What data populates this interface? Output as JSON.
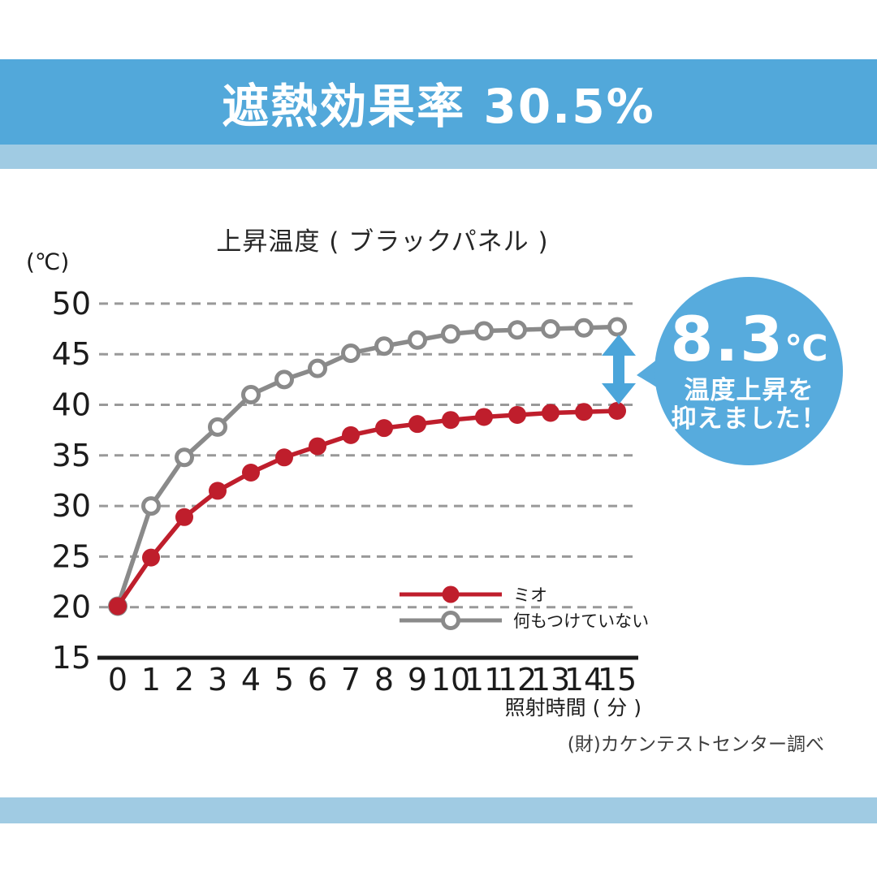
{
  "header": {
    "title": "遮熱効果率 30.5%",
    "band_color": "#52A8DA",
    "accent_band_color": "#A0CBE3"
  },
  "chart_data": {
    "type": "line",
    "title": "上昇温度 ( ブラックパネル )",
    "y_axis_unit": "(℃)",
    "xlabel": "照射時間 ( 分 )",
    "x": [
      0,
      1,
      2,
      3,
      4,
      5,
      6,
      7,
      8,
      9,
      10,
      11,
      12,
      13,
      14,
      15
    ],
    "y_ticks": [
      15,
      20,
      25,
      30,
      35,
      40,
      45,
      50
    ],
    "ylim": [
      15,
      50
    ],
    "xlim": [
      0,
      15
    ],
    "grid": "horizontal-dashed",
    "grid_color": "#999999",
    "axis_color": "#1c1c1c",
    "legend_position": "inside-lower-right",
    "series": [
      {
        "id": "mio",
        "name": "ミオ",
        "color": "#BF1E2C",
        "marker": "filled-circle",
        "values": [
          20.1,
          24.9,
          28.9,
          31.5,
          33.3,
          34.8,
          35.9,
          37.0,
          37.7,
          38.1,
          38.5,
          38.8,
          39.0,
          39.2,
          39.3,
          39.4
        ]
      },
      {
        "id": "untreated",
        "name": "何もつけていない",
        "color": "#8A8A8A",
        "marker": "open-circle",
        "values": [
          20.1,
          30.0,
          34.8,
          37.8,
          41.0,
          42.5,
          43.6,
          45.1,
          45.8,
          46.4,
          47.0,
          47.3,
          47.4,
          47.5,
          47.6,
          47.7
        ]
      }
    ],
    "annotation": {
      "difference_value": "8.3",
      "difference_unit": "℃",
      "description_line1": "温度上昇を",
      "description_line2": "抑えました！",
      "badge_color": "#57ABDD",
      "arrow_color": "#4BA5DA"
    }
  },
  "footer": {
    "note": "(財)カケンテストセンター調べ",
    "band_color": "#A0CBE3"
  }
}
